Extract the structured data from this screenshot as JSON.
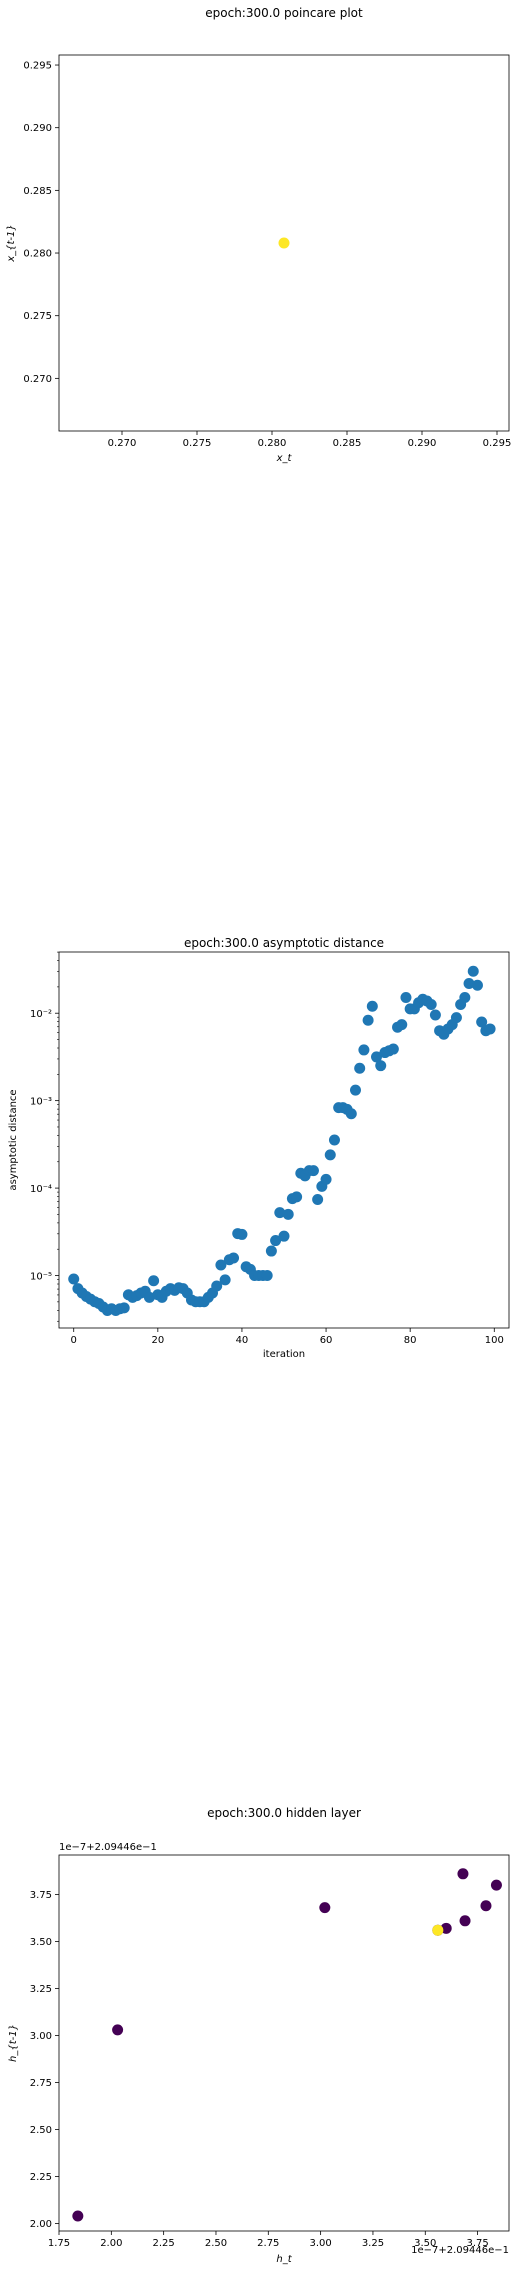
{
  "chart_data": [
    {
      "type": "scatter",
      "title": "epoch:300.0 poincare plot",
      "xlabel": "x_t",
      "ylabel": "x_{t-1}",
      "xlim": [
        0.2658,
        0.2958
      ],
      "ylim": [
        0.2658,
        0.2958
      ],
      "xticks": [
        "0.270",
        "0.275",
        "0.280",
        "0.285",
        "0.290",
        "0.295"
      ],
      "yticks": [
        "0.270",
        "0.275",
        "0.280",
        "0.285",
        "0.290",
        "0.295"
      ],
      "points": [
        {
          "x": 0.2808,
          "y": 0.2808,
          "color": "#fde725"
        }
      ]
    },
    {
      "type": "scatter",
      "scale": "log",
      "title": "epoch:300.0 asymptotic distance",
      "xlabel": "iteration",
      "ylabel": "asymptotic distance",
      "xlim": [
        -3.5,
        103.5
      ],
      "ylim_log10": [
        -5.6,
        -1.3
      ],
      "xticks": [
        "0",
        "20",
        "40",
        "60",
        "80",
        "100"
      ],
      "yticks": [
        "10⁻⁵",
        "10⁻⁴",
        "10⁻³",
        "10⁻²"
      ],
      "color": "#1f77b4",
      "x": [
        0,
        1,
        2,
        3,
        4,
        5,
        6,
        7,
        8,
        9,
        10,
        11,
        12,
        13,
        14,
        15,
        16,
        17,
        18,
        19,
        20,
        21,
        22,
        23,
        24,
        25,
        26,
        27,
        28,
        29,
        30,
        31,
        32,
        33,
        34,
        35,
        36,
        37,
        38,
        39,
        40,
        41,
        42,
        43,
        44,
        45,
        46,
        47,
        48,
        49,
        50,
        51,
        52,
        53,
        54,
        55,
        56,
        57,
        58,
        59,
        60,
        61,
        62,
        63,
        64,
        65,
        66,
        67,
        68,
        69,
        70,
        71,
        72,
        73,
        74,
        75,
        76,
        77,
        78,
        79,
        80,
        81,
        82,
        83,
        84,
        85,
        86,
        87,
        88,
        89,
        90,
        91,
        92,
        93,
        94,
        95,
        96,
        97,
        98,
        99
      ],
      "log10_y": [
        -5.04,
        -5.15,
        -5.2,
        -5.24,
        -5.27,
        -5.3,
        -5.32,
        -5.36,
        -5.4,
        -5.38,
        -5.4,
        -5.38,
        -5.37,
        -5.22,
        -5.25,
        -5.23,
        -5.2,
        -5.18,
        -5.25,
        -5.06,
        -5.22,
        -5.25,
        -5.18,
        -5.15,
        -5.17,
        -5.14,
        -5.15,
        -5.2,
        -5.28,
        -5.3,
        -5.3,
        -5.3,
        -5.25,
        -5.2,
        -5.12,
        -4.88,
        -5.05,
        -4.82,
        -4.8,
        -4.52,
        -4.53,
        -4.9,
        -4.93,
        -5.0,
        -5.0,
        -5.0,
        -5.0,
        -4.72,
        -4.6,
        -4.28,
        -4.55,
        -4.3,
        -4.12,
        -4.1,
        -3.83,
        -3.86,
        -3.8,
        -3.8,
        -4.13,
        -3.98,
        -3.9,
        -3.62,
        -3.45,
        -3.08,
        -3.08,
        -3.1,
        -3.15,
        -2.88,
        -2.63,
        -2.42,
        -2.08,
        -1.92,
        -2.5,
        -2.6,
        -2.45,
        -2.43,
        -2.41,
        -2.16,
        -2.13,
        -1.82,
        -1.95,
        -1.95,
        -1.88,
        -1.84,
        -1.86,
        -1.9,
        -2.02,
        -2.2,
        -2.24,
        -2.18,
        -2.13,
        -2.05,
        -1.9,
        -1.82,
        -1.66,
        -1.52,
        -1.68,
        -2.1,
        -2.2,
        -2.18
      ]
    },
    {
      "type": "scatter",
      "title": "epoch:300.0 hidden layer",
      "xlabel": "h_t",
      "ylabel": "h_{t-1}",
      "offset_x_label": "1e−7+2.09446e−1",
      "offset_y_label": "1e−7+2.09446e−1",
      "xlim": [
        1.75,
        3.9
      ],
      "ylim": [
        1.96,
        3.96
      ],
      "xticks": [
        "1.75",
        "2.00",
        "2.25",
        "2.50",
        "2.75",
        "3.00",
        "3.25",
        "3.50",
        "3.75"
      ],
      "yticks": [
        "2.00",
        "2.25",
        "2.50",
        "2.75",
        "3.00",
        "3.25",
        "3.50",
        "3.75"
      ],
      "points": [
        {
          "x": 1.84,
          "y": 2.04,
          "color": "#440154"
        },
        {
          "x": 2.03,
          "y": 3.03,
          "color": "#440154"
        },
        {
          "x": 3.02,
          "y": 3.68,
          "color": "#440154"
        },
        {
          "x": 3.6,
          "y": 3.57,
          "color": "#440154"
        },
        {
          "x": 3.68,
          "y": 3.86,
          "color": "#440154"
        },
        {
          "x": 3.69,
          "y": 3.61,
          "color": "#440154"
        },
        {
          "x": 3.79,
          "y": 3.69,
          "color": "#440154"
        },
        {
          "x": 3.84,
          "y": 3.8,
          "color": "#440154"
        },
        {
          "x": 3.56,
          "y": 3.56,
          "color": "#440154"
        },
        {
          "x": 3.56,
          "y": 3.56,
          "color": "#fde725"
        }
      ]
    }
  ]
}
